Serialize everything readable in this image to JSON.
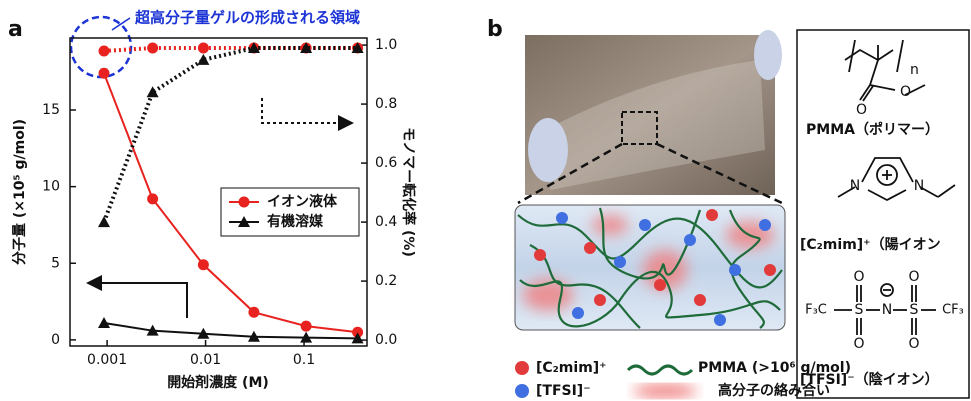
{
  "chart_data": {
    "type": "line",
    "panel_label": "a",
    "annotation": "超高分子量ゲルの形成される領域",
    "xlabel": "開始剤濃度 (M)",
    "ylabel": "分子量 (×10⁵ g/mol)",
    "y2label": "モノマー転化率 (%)",
    "x": [
      0.00093,
      0.0029,
      0.0095,
      0.031,
      0.105,
      0.35
    ],
    "xlog": true,
    "xlim": [
      0.00042,
      0.436
    ],
    "xticks": [
      0.001,
      0.01,
      0.1
    ],
    "ylim": [
      -0.4,
      19.7
    ],
    "yticks": [
      0,
      5,
      10,
      15
    ],
    "y2lim": [
      -0.02,
      1.024
    ],
    "y2ticks": [
      {
        "value": 0,
        "label": "0.0"
      },
      0.2,
      0.4,
      0.6,
      0.8,
      {
        "value": 1,
        "label": "1.0"
      }
    ],
    "legend": "center-right",
    "series": [
      {
        "name": "イオン液体",
        "color": "#e8231f",
        "marker": "circle",
        "linestyle": "solid",
        "values": [
          17.4,
          9.2,
          4.9,
          1.8,
          0.9,
          0.5
        ]
      },
      {
        "name": "有機溶媒",
        "color": "#111111",
        "marker": "triangle",
        "linestyle": "solid",
        "values": [
          1.1,
          0.6,
          0.4,
          0.2,
          0.15,
          0.1
        ]
      },
      {
        "color": "#e8231f",
        "marker": "circle",
        "linestyle": "dotted",
        "axis": "y2",
        "values": [
          0.98,
          0.99,
          0.99,
          0.99,
          0.99,
          0.99
        ]
      },
      {
        "color": "#111111",
        "marker": "triangle",
        "linestyle": "dotted",
        "axis": "y2",
        "values": [
          0.4,
          0.84,
          0.95,
          0.99,
          0.99,
          0.99
        ]
      }
    ]
  },
  "panel_b": {
    "label": "b",
    "pmma": {
      "name": "PMMA（ポリマー）",
      "atoms": [
        "n",
        "O",
        "O"
      ]
    },
    "cation": {
      "name": "[C₂mim]⁺（陽イオン",
      "atoms": [
        "N",
        "N"
      ]
    },
    "anion": {
      "name": "[TFSI]⁻（陰イオン）",
      "atoms": [
        "F₃C",
        "S",
        "N",
        "S",
        "CF₃",
        "O",
        "O",
        "O",
        "O"
      ]
    },
    "legend": [
      "[C₂mim]⁺",
      "[TFSI]⁻",
      "PMMA (>10⁶ g/mol)",
      "高分子の絡み合い"
    ]
  }
}
